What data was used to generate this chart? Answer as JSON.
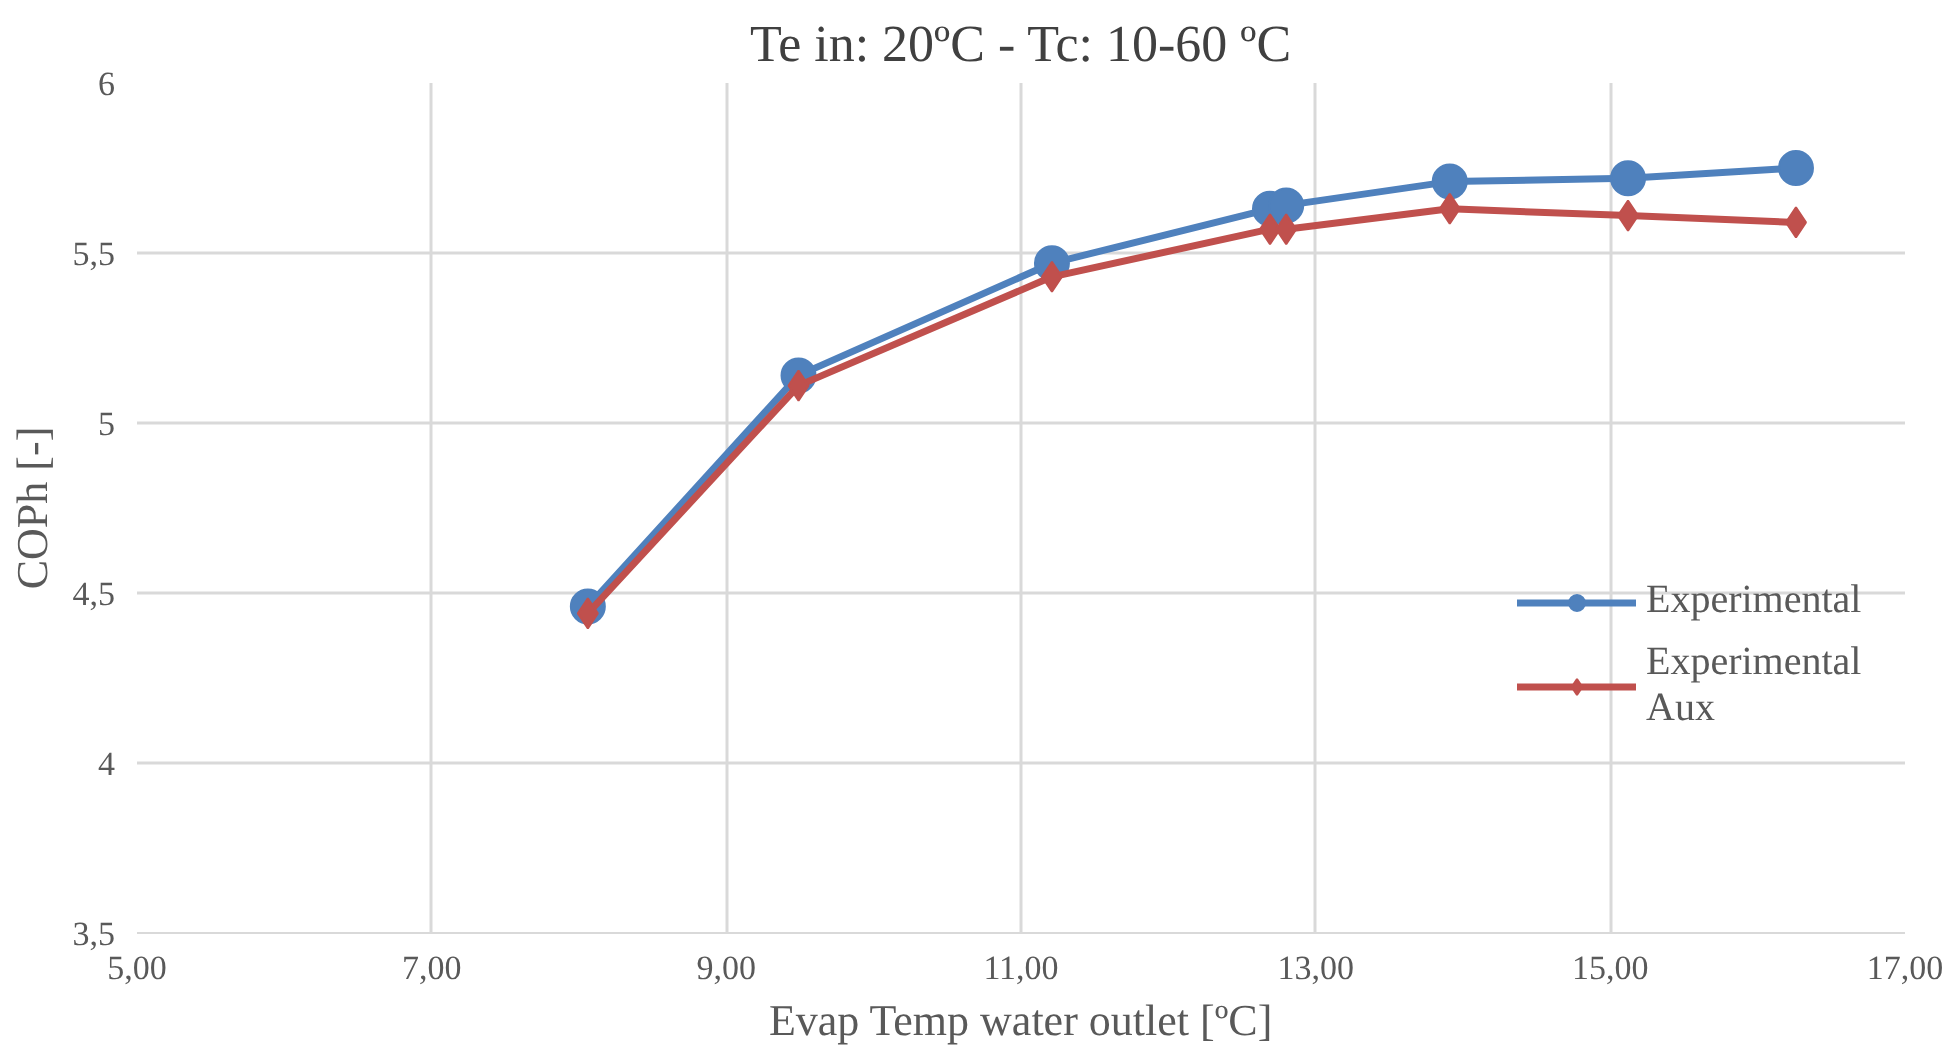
{
  "chart_data": {
    "type": "line",
    "title": "Te in: 20ºC - Tc: 10-60 ºC",
    "xlabel": "Evap Temp water outlet [ºC]",
    "ylabel": "COPh [-]",
    "x": [
      8.06,
      9.49,
      11.21,
      12.69,
      12.8,
      13.91,
      15.12,
      16.26
    ],
    "series": [
      {
        "name": "Experimental",
        "color": "#4f81bd",
        "marker": "circle",
        "values": [
          4.46,
          5.14,
          5.47,
          5.63,
          5.64,
          5.71,
          5.72,
          5.75
        ]
      },
      {
        "name": "Experimental Aux",
        "color": "#c0504d",
        "marker": "diamond",
        "values": [
          4.44,
          5.11,
          5.43,
          5.57,
          5.57,
          5.63,
          5.61,
          5.59
        ]
      }
    ],
    "xlim": [
      5,
      17
    ],
    "xticks": [
      {
        "value": 5,
        "label": "5,00"
      },
      {
        "value": 7,
        "label": "7,00"
      },
      {
        "value": 9,
        "label": "9,00"
      },
      {
        "value": 11,
        "label": "11,00"
      },
      {
        "value": 13,
        "label": "13,00"
      },
      {
        "value": 15,
        "label": "15,00"
      },
      {
        "value": 17,
        "label": "17,00"
      }
    ],
    "ylim": [
      3.5,
      6
    ],
    "yticks": [
      {
        "value": 3.5,
        "label": "3,5"
      },
      4,
      {
        "value": 4.5,
        "label": "4,5"
      },
      5,
      {
        "value": 5.5,
        "label": "5,5"
      },
      6
    ],
    "grid": true,
    "legend": "right",
    "line_style": "solid"
  }
}
